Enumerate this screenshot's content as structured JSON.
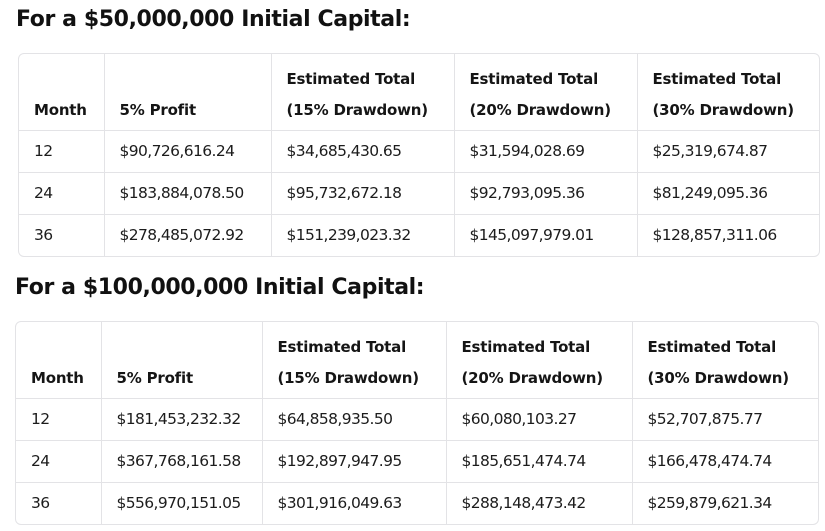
{
  "sections": [
    {
      "title": "For a $50,000,000 Initial Capital:",
      "headers": [
        [
          "Month"
        ],
        [
          "5% Profit"
        ],
        [
          "Estimated Total",
          "(15% Drawdown)"
        ],
        [
          "Estimated Total",
          "(20% Drawdown)"
        ],
        [
          "Estimated Total",
          "(30% Drawdown)"
        ]
      ],
      "rows": [
        [
          "12",
          "$90,726,616.24",
          "$34,685,430.65",
          "$31,594,028.69",
          "$25,319,674.87"
        ],
        [
          "24",
          "$183,884,078.50",
          "$95,732,672.18",
          "$92,793,095.36",
          "$81,249,095.36"
        ],
        [
          "36",
          "$278,485,072.92",
          "$151,239,023.32",
          "$145,097,979.01",
          "$128,857,311.06"
        ]
      ]
    },
    {
      "title": "For a $100,000,000 Initial Capital:",
      "headers": [
        [
          "Month"
        ],
        [
          "5% Profit"
        ],
        [
          "Estimated Total",
          "(15% Drawdown)"
        ],
        [
          "Estimated Total",
          "(20% Drawdown)"
        ],
        [
          "Estimated Total",
          "(30% Drawdown)"
        ]
      ],
      "rows": [
        [
          "12",
          "$181,453,232.32",
          "$64,858,935.50",
          "$60,080,103.27",
          "$52,707,875.77"
        ],
        [
          "24",
          "$367,768,161.58",
          "$192,897,947.95",
          "$185,651,474.74",
          "$166,478,474.74"
        ],
        [
          "36",
          "$556,970,151.05",
          "$301,916,049.63",
          "$288,148,473.42",
          "$259,879,621.34"
        ]
      ]
    }
  ]
}
